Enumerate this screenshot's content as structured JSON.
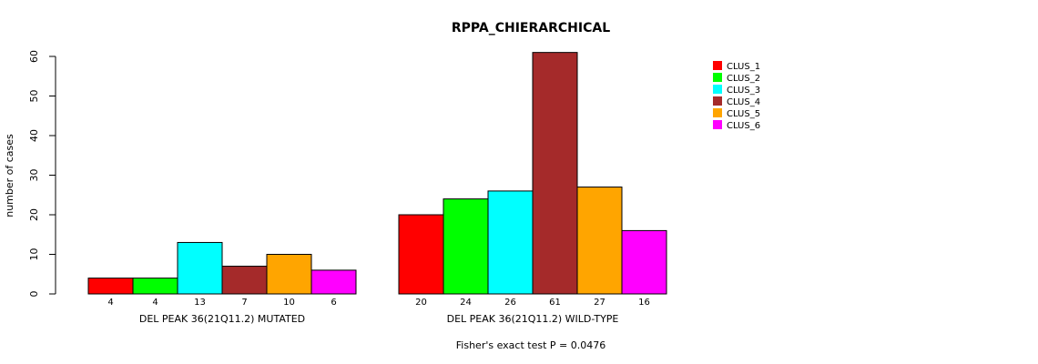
{
  "chart_data": {
    "type": "bar",
    "title": "RPPA_CHIERARCHICAL",
    "ylabel": "number of cases",
    "ylim": [
      0,
      60
    ],
    "yticks": [
      "0",
      "10",
      "20",
      "30",
      "40",
      "50",
      "60"
    ],
    "groups": [
      {
        "label": "DEL PEAK 36(21Q11.2) MUTATED",
        "values": [
          4,
          4,
          13,
          7,
          10,
          6
        ],
        "value_labels": [
          "4",
          "4",
          "13",
          "7",
          "10",
          "6"
        ]
      },
      {
        "label": "DEL PEAK 36(21Q11.2) WILD-TYPE",
        "values": [
          20,
          24,
          26,
          61,
          27,
          16
        ],
        "value_labels": [
          "20",
          "24",
          "26",
          "61",
          "27",
          "16"
        ]
      }
    ],
    "series": [
      {
        "name": "CLUS_1",
        "color": "#FF0000"
      },
      {
        "name": "CLUS_2",
        "color": "#00FF00"
      },
      {
        "name": "CLUS_3",
        "color": "#00FFFF"
      },
      {
        "name": "CLUS_4",
        "color": "#A52A2A"
      },
      {
        "name": "CLUS_5",
        "color": "#FFA500"
      },
      {
        "name": "CLUS_6",
        "color": "#FF00FF"
      }
    ],
    "footnote": "Fisher's exact test P = 0.0476",
    "legend_position": "top-right"
  }
}
